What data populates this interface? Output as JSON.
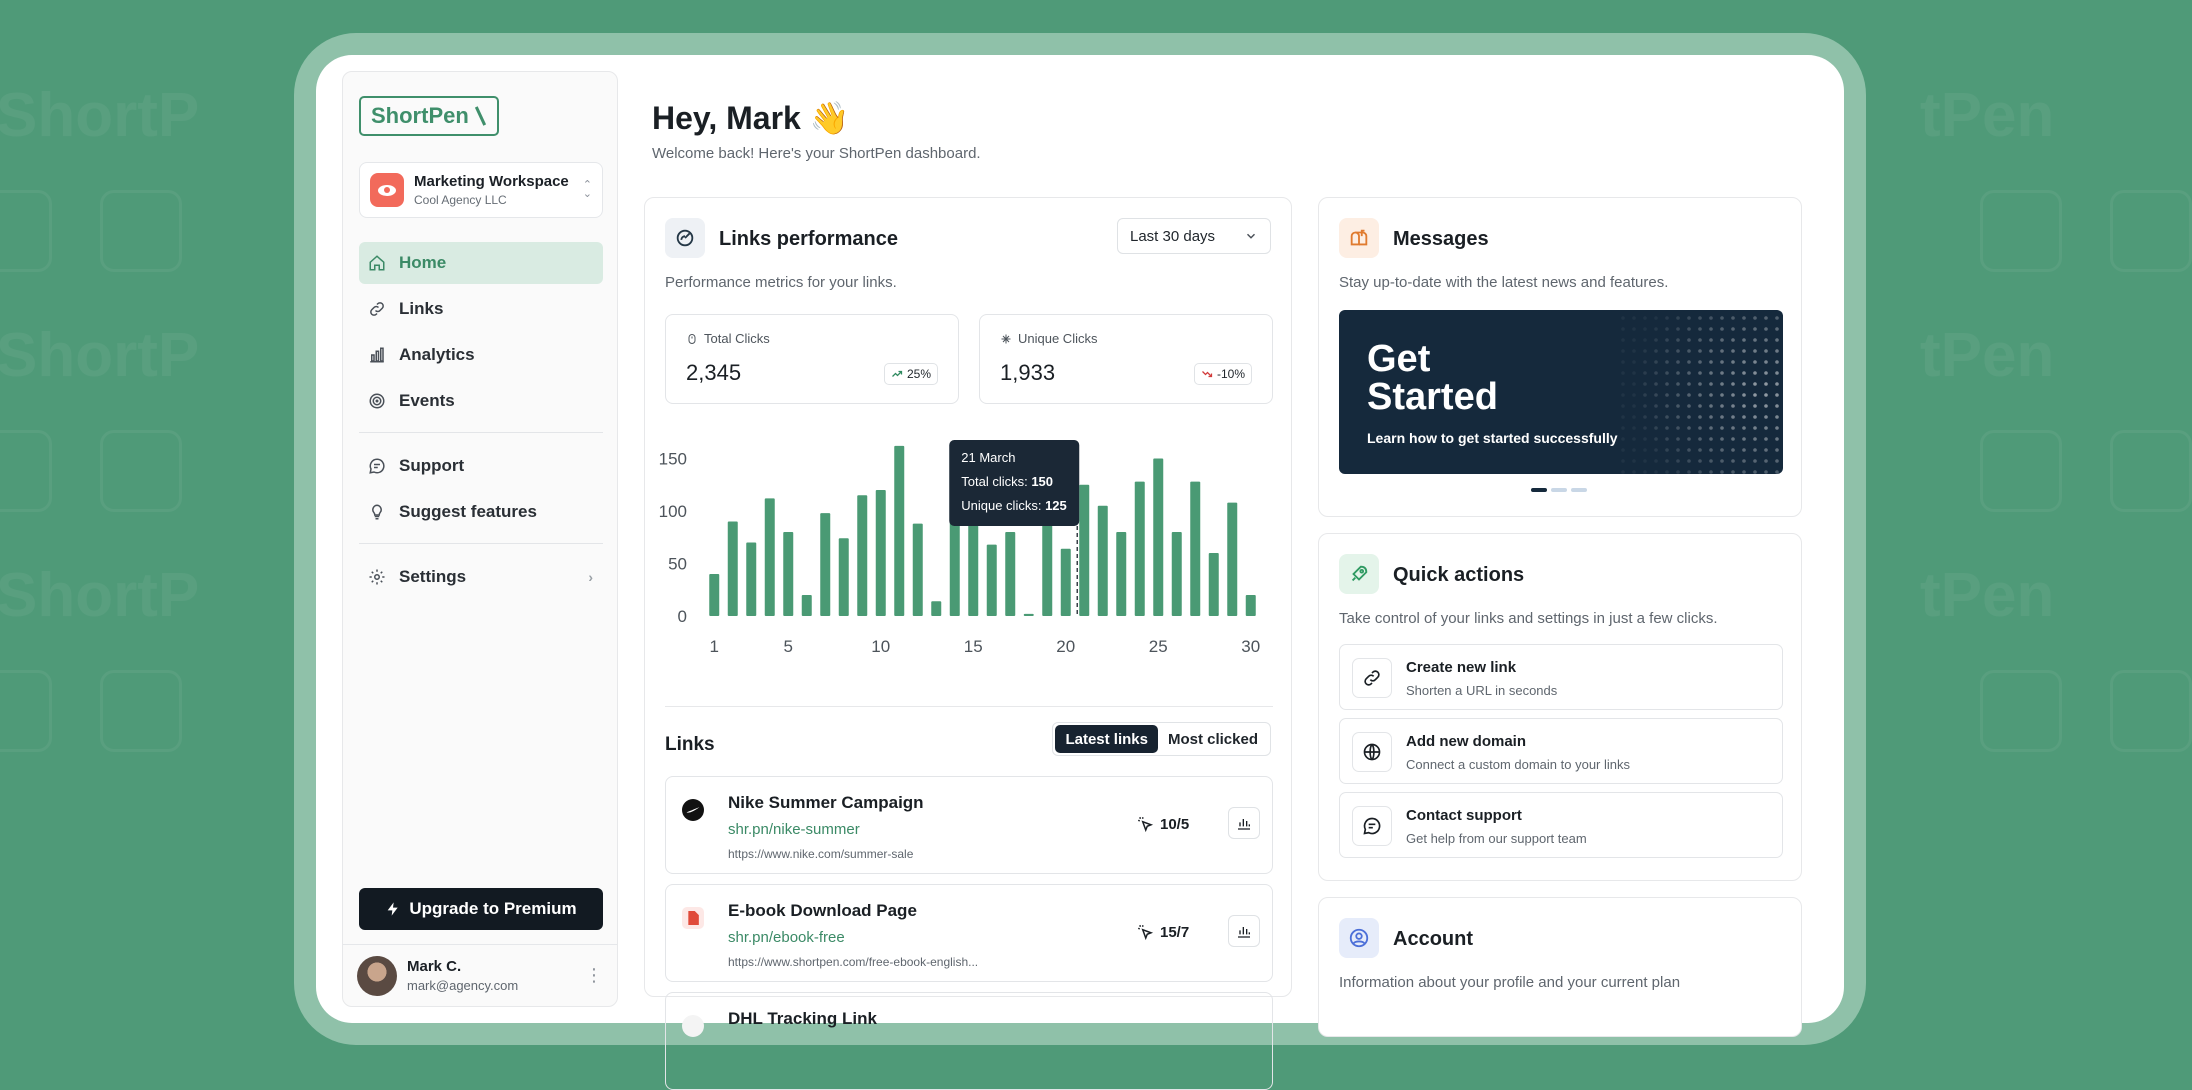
{
  "brand": {
    "name": "ShortPen"
  },
  "workspace": {
    "name": "Marketing Workspace",
    "company": "Cool Agency LLC"
  },
  "nav": {
    "items": [
      {
        "id": "home",
        "label": "Home",
        "icon": "home-icon",
        "active": true
      },
      {
        "id": "links",
        "label": "Links",
        "icon": "link-icon"
      },
      {
        "id": "analytics",
        "label": "Analytics",
        "icon": "bar-chart-icon"
      },
      {
        "id": "events",
        "label": "Events",
        "icon": "target-icon"
      }
    ],
    "secondary": [
      {
        "id": "support",
        "label": "Support",
        "icon": "chat-icon"
      },
      {
        "id": "suggest",
        "label": "Suggest features",
        "icon": "lightbulb-icon"
      }
    ],
    "settings": {
      "label": "Settings",
      "icon": "gear-icon"
    }
  },
  "upgrade": {
    "label": "Upgrade to Premium"
  },
  "user": {
    "name": "Mark C.",
    "email": "mark@agency.com"
  },
  "header": {
    "title": "Hey, Mark 👋",
    "subtitle": "Welcome back! Here's your ShortPen dashboard."
  },
  "performance": {
    "title": "Links performance",
    "subtitle": "Performance metrics for your links.",
    "range": "Last 30 days",
    "total": {
      "label": "Total Clicks",
      "value": "2,345",
      "change": "25%",
      "trend": "up"
    },
    "unique": {
      "label": "Unique Clicks",
      "value": "1,933",
      "change": "-10%",
      "trend": "down"
    },
    "tooltip": {
      "date": "21 March",
      "total_label": "Total clicks:",
      "total_value": "150",
      "unique_label": "Unique clicks:",
      "unique_value": "125"
    }
  },
  "chart_data": {
    "type": "bar",
    "x": [
      1,
      2,
      3,
      4,
      5,
      6,
      7,
      8,
      9,
      10,
      11,
      12,
      13,
      14,
      15,
      16,
      17,
      18,
      19,
      20,
      21,
      22,
      23,
      24,
      25,
      26,
      27,
      28,
      29,
      30
    ],
    "x_ticks": [
      1,
      5,
      10,
      15,
      20,
      25,
      30
    ],
    "y_ticks": [
      0,
      50,
      100,
      150
    ],
    "ylim": [
      0,
      160
    ],
    "values": [
      40,
      90,
      70,
      112,
      80,
      20,
      98,
      74,
      115,
      120,
      162,
      88,
      14,
      140,
      110,
      68,
      80,
      2,
      128,
      64,
      125,
      105,
      80,
      128,
      150,
      80,
      128,
      60,
      108,
      20
    ],
    "highlight_index": 20,
    "color": "#4a9a74"
  },
  "links": {
    "title": "Links",
    "tabs": [
      "Latest links",
      "Most clicked"
    ],
    "items": [
      {
        "name": "Nike Summer Campaign",
        "short": "shr.pn/nike-summer",
        "url": "https://www.nike.com/summer-sale",
        "clicks": "10/5",
        "icon": "nike-logo-icon"
      },
      {
        "name": "E-book Download Page",
        "short": "shr.pn/ebook-free",
        "url": "https://www.shortpen.com/free-ebook-english...",
        "clicks": "15/7",
        "icon": "pdf-icon"
      },
      {
        "name": "DHL Tracking Link",
        "short": "",
        "url": "",
        "clicks": "",
        "icon": "dhl-icon"
      }
    ]
  },
  "messages": {
    "title": "Messages",
    "subtitle": "Stay up-to-date with the latest news and features.",
    "banner_title": "Get Started",
    "banner_sub": "Learn how to get started successfully"
  },
  "quick": {
    "title": "Quick actions",
    "subtitle": "Take control of your links and settings in just a few clicks.",
    "items": [
      {
        "name": "Create new link",
        "desc": "Shorten a URL in seconds",
        "icon": "link-icon"
      },
      {
        "name": "Add new domain",
        "desc": "Connect a custom domain to your links",
        "icon": "globe-icon"
      },
      {
        "name": "Contact support",
        "desc": "Get help from our support team",
        "icon": "chat-icon"
      }
    ]
  },
  "account": {
    "title": "Account",
    "subtitle": "Information about your profile and your current plan"
  }
}
